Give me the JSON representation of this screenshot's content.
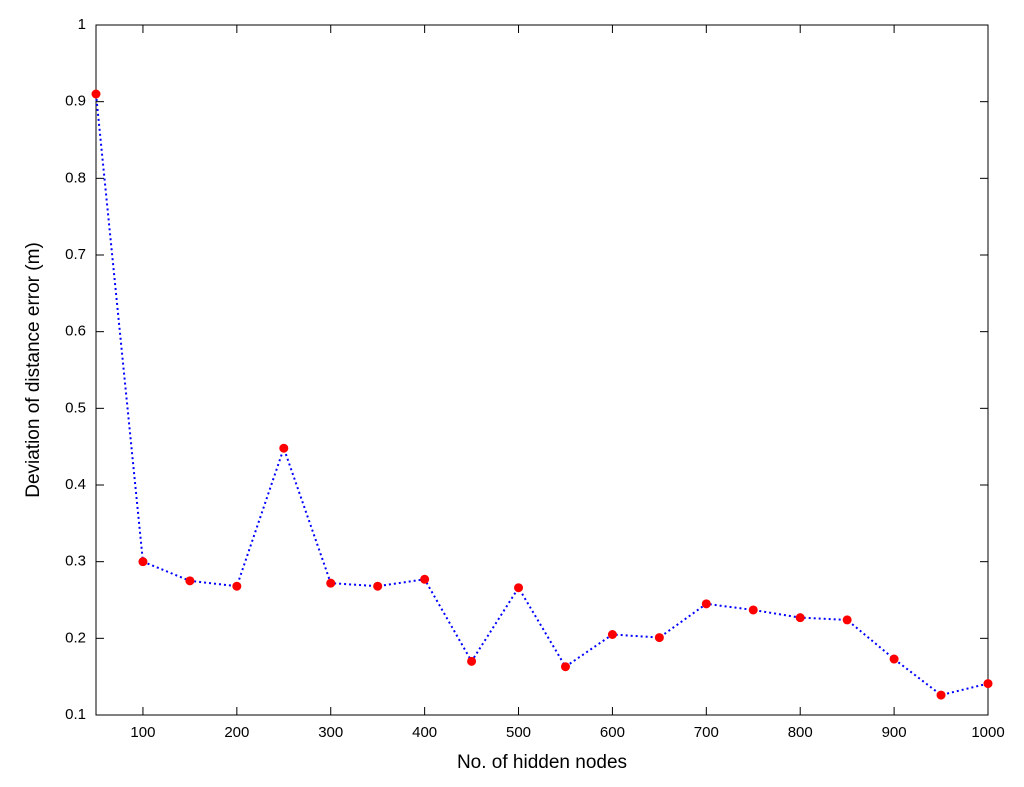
{
  "chart_data": {
    "type": "line",
    "xlabel": "No. of hidden nodes",
    "ylabel": "Deviation of distance error (m)",
    "x": [
      50,
      100,
      150,
      200,
      250,
      300,
      350,
      400,
      450,
      500,
      550,
      600,
      650,
      700,
      750,
      800,
      850,
      900,
      950,
      1000
    ],
    "series": [
      {
        "color": "#0000ff",
        "marker_color": "#ff0000",
        "values": [
          0.91,
          0.3,
          0.275,
          0.268,
          0.448,
          0.272,
          0.268,
          0.277,
          0.17,
          0.266,
          0.163,
          0.205,
          0.201,
          0.245,
          0.237,
          0.227,
          0.224,
          0.173,
          0.126,
          0.141
        ]
      }
    ],
    "xlim": [
      50,
      1000
    ],
    "xticks": [
      100,
      200,
      300,
      400,
      500,
      600,
      700,
      800,
      900,
      1000
    ],
    "ylim": [
      0.1,
      1
    ],
    "yticks": [
      0.1,
      0.2,
      0.3,
      0.4,
      0.5,
      0.6,
      0.7,
      0.8,
      0.9,
      1
    ]
  }
}
